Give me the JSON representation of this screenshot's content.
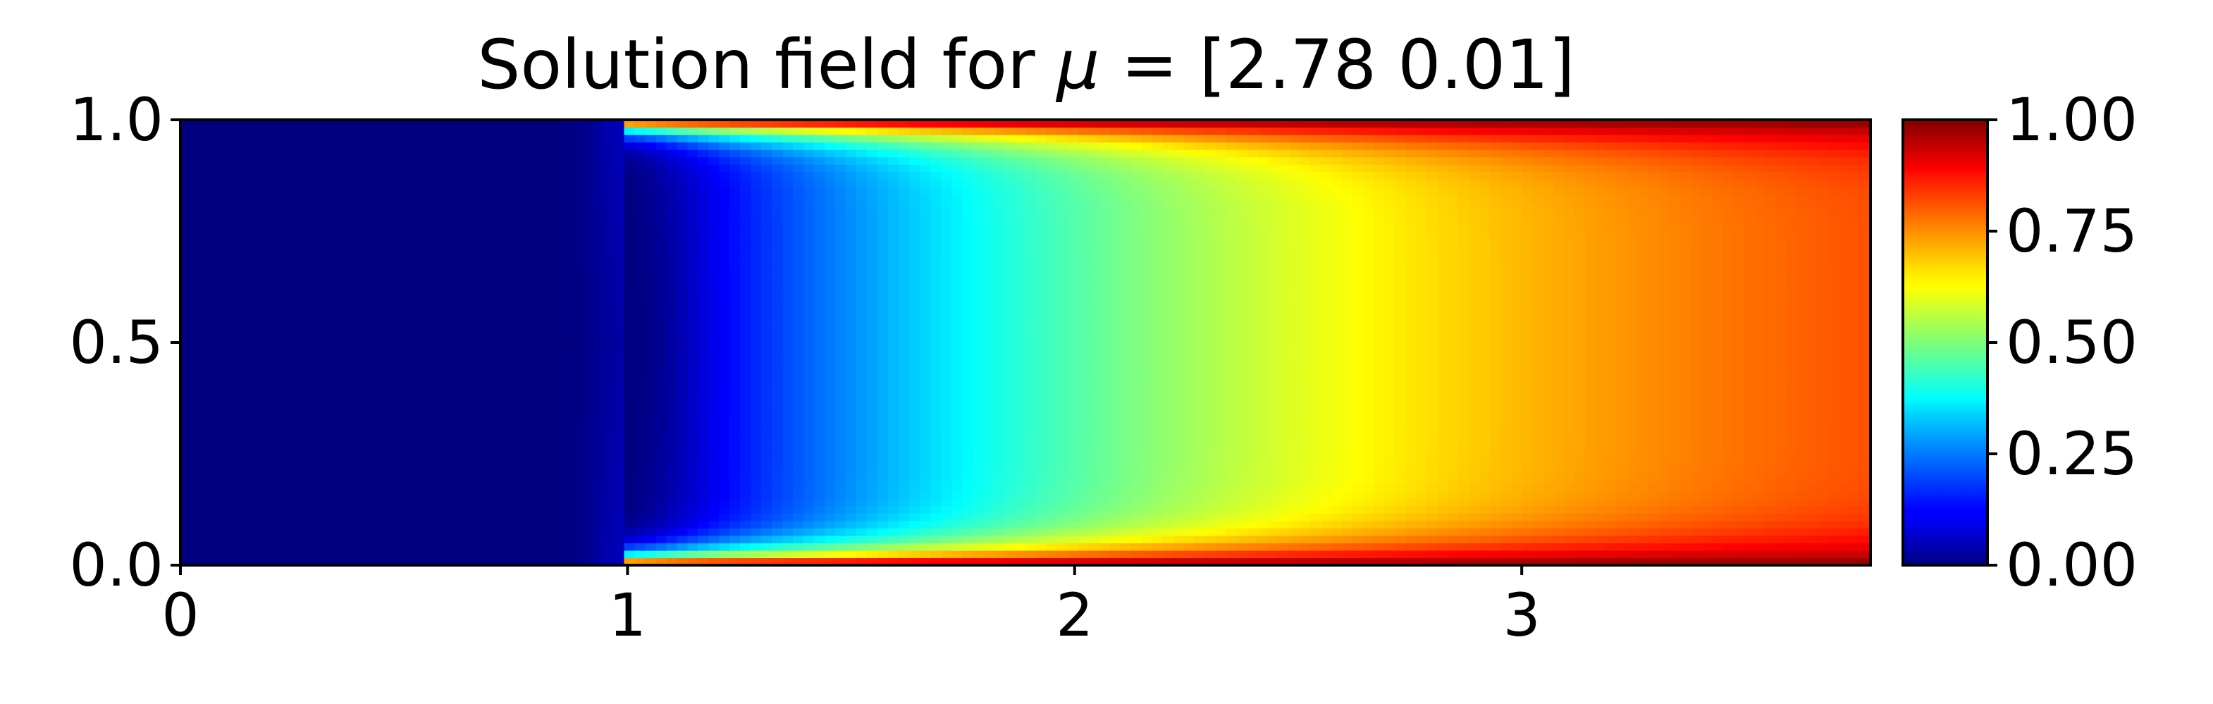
{
  "chart_data": {
    "type": "heatmap",
    "title_prefix": "Solution field for ",
    "title_symbol": "μ",
    "title_suffix": " = [2.78 0.01]",
    "xlabel": "",
    "ylabel": "",
    "xlim": [
      0,
      3.78
    ],
    "ylim": [
      0,
      1
    ],
    "xticks": [
      0,
      1,
      2,
      3
    ],
    "xtick_labels": [
      "0",
      "1",
      "2",
      "3"
    ],
    "yticks": [
      0.0,
      0.5,
      1.0
    ],
    "ytick_labels": [
      "0.0",
      "0.5",
      "1.0"
    ],
    "colorbar": {
      "range": [
        0,
        1
      ],
      "ticks": [
        0.0,
        0.25,
        0.5,
        0.75,
        1.0
      ],
      "tick_labels": [
        "0.00",
        "0.25",
        "0.50",
        "0.75",
        "1.00"
      ],
      "colormap": "jet"
    },
    "field": {
      "description_points": [
        {
          "x": 0.5,
          "y": 0.5,
          "value": 0.0
        },
        {
          "x": 1.0,
          "y": 0.0,
          "value": 0.0
        },
        {
          "x": 1.0,
          "y": 1.0,
          "value": 0.0
        },
        {
          "x": 1.3,
          "y": 0.5,
          "value": 0.1
        },
        {
          "x": 2.0,
          "y": 0.5,
          "value": 0.5
        },
        {
          "x": 2.8,
          "y": 0.5,
          "value": 0.68
        },
        {
          "x": 3.78,
          "y": 0.5,
          "value": 0.85
        },
        {
          "x": 3.78,
          "y": 0.0,
          "value": 1.0
        },
        {
          "x": 3.78,
          "y": 1.0,
          "value": 1.0
        },
        {
          "x": 1.5,
          "y": 0.05,
          "value": 0.85
        },
        {
          "x": 1.5,
          "y": 0.95,
          "value": 0.85
        }
      ],
      "inlet_x": 1.0
    },
    "grid": false
  }
}
